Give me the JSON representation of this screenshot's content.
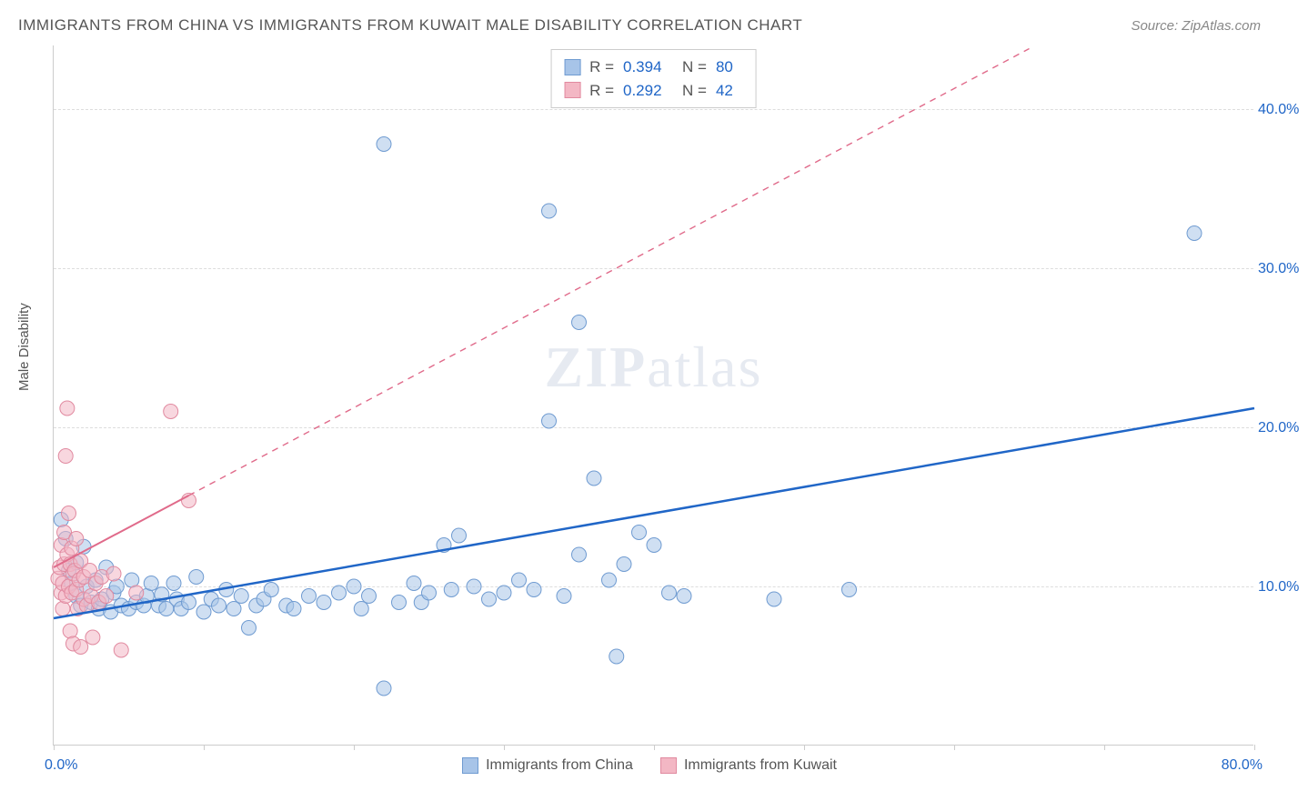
{
  "header": {
    "title": "IMMIGRANTS FROM CHINA VS IMMIGRANTS FROM KUWAIT MALE DISABILITY CORRELATION CHART",
    "source": "Source: ZipAtlas.com"
  },
  "chart": {
    "type": "scatter",
    "ylabel": "Male Disability",
    "xlim": [
      0,
      80
    ],
    "ylim": [
      0,
      44
    ],
    "xticks": [
      0,
      10,
      20,
      30,
      40,
      50,
      60,
      70,
      80
    ],
    "yticks": [
      10,
      20,
      30,
      40
    ],
    "ytick_labels": [
      "10.0%",
      "20.0%",
      "30.0%",
      "40.0%"
    ],
    "xaxis_min_label": "0.0%",
    "xaxis_max_label": "80.0%",
    "background_color": "#ffffff",
    "grid_color": "#dddddd",
    "axis_color": "#cccccc",
    "marker_radius": 8,
    "marker_opacity": 0.55,
    "watermark": "ZIPatlas",
    "series": [
      {
        "name": "Immigrants from China",
        "color_fill": "#a7c4e8",
        "color_stroke": "#6f9bd1",
        "trend_color": "#2066c7",
        "trend_width": 2.5,
        "trend_solid_until_x": 80,
        "trend": {
          "x1": 0,
          "y1": 8.0,
          "x2": 80,
          "y2": 21.2
        },
        "R": "0.394",
        "N": "80",
        "data": [
          [
            0.5,
            14.2
          ],
          [
            0.8,
            13.0
          ],
          [
            1.0,
            11.0
          ],
          [
            1.2,
            10.2
          ],
          [
            1.5,
            9.4
          ],
          [
            1.5,
            11.5
          ],
          [
            1.8,
            8.8
          ],
          [
            2.0,
            12.5
          ],
          [
            2.2,
            10.0
          ],
          [
            2.5,
            9.0
          ],
          [
            2.8,
            10.4
          ],
          [
            3.0,
            8.6
          ],
          [
            3.2,
            9.2
          ],
          [
            3.5,
            11.2
          ],
          [
            3.8,
            8.4
          ],
          [
            4.0,
            9.6
          ],
          [
            4.2,
            10.0
          ],
          [
            4.5,
            8.8
          ],
          [
            5.0,
            8.6
          ],
          [
            5.2,
            10.4
          ],
          [
            5.5,
            9.0
          ],
          [
            6.0,
            8.8
          ],
          [
            6.2,
            9.4
          ],
          [
            6.5,
            10.2
          ],
          [
            7.0,
            8.8
          ],
          [
            7.2,
            9.5
          ],
          [
            7.5,
            8.6
          ],
          [
            8.0,
            10.2
          ],
          [
            8.2,
            9.2
          ],
          [
            8.5,
            8.6
          ],
          [
            9.0,
            9.0
          ],
          [
            9.5,
            10.6
          ],
          [
            10.0,
            8.4
          ],
          [
            10.5,
            9.2
          ],
          [
            11.0,
            8.8
          ],
          [
            11.5,
            9.8
          ],
          [
            12.0,
            8.6
          ],
          [
            12.5,
            9.4
          ],
          [
            13.0,
            7.4
          ],
          [
            13.5,
            8.8
          ],
          [
            14.0,
            9.2
          ],
          [
            14.5,
            9.8
          ],
          [
            15.5,
            8.8
          ],
          [
            16.0,
            8.6
          ],
          [
            17.0,
            9.4
          ],
          [
            18.0,
            9.0
          ],
          [
            19.0,
            9.6
          ],
          [
            20.0,
            10.0
          ],
          [
            20.5,
            8.6
          ],
          [
            21.0,
            9.4
          ],
          [
            22.0,
            3.6
          ],
          [
            23.0,
            9.0
          ],
          [
            24.0,
            10.2
          ],
          [
            24.5,
            9.0
          ],
          [
            25.0,
            9.6
          ],
          [
            22.0,
            37.8
          ],
          [
            26.0,
            12.6
          ],
          [
            26.5,
            9.8
          ],
          [
            27.0,
            13.2
          ],
          [
            28.0,
            10.0
          ],
          [
            29.0,
            9.2
          ],
          [
            30.0,
            9.6
          ],
          [
            31.0,
            10.4
          ],
          [
            32.0,
            9.8
          ],
          [
            33.0,
            20.4
          ],
          [
            33.0,
            33.6
          ],
          [
            34.0,
            9.4
          ],
          [
            35.0,
            12.0
          ],
          [
            35.0,
            26.6
          ],
          [
            36.0,
            16.8
          ],
          [
            37.0,
            10.4
          ],
          [
            37.5,
            5.6
          ],
          [
            38.0,
            11.4
          ],
          [
            39.0,
            13.4
          ],
          [
            40.0,
            12.6
          ],
          [
            41.0,
            9.6
          ],
          [
            42.0,
            9.4
          ],
          [
            48.0,
            9.2
          ],
          [
            53.0,
            9.8
          ],
          [
            76.0,
            32.2
          ]
        ]
      },
      {
        "name": "Immigrants from Kuwait",
        "color_fill": "#f3b7c4",
        "color_stroke": "#e18aa0",
        "trend_color": "#e06a8a",
        "trend_width": 2,
        "trend_solid_until_x": 9,
        "trend": {
          "x1": 0,
          "y1": 11.2,
          "x2": 65,
          "y2": 43.8
        },
        "R": "0.292",
        "N": "42",
        "data": [
          [
            0.3,
            10.5
          ],
          [
            0.4,
            11.2
          ],
          [
            0.5,
            9.6
          ],
          [
            0.5,
            12.6
          ],
          [
            0.6,
            10.2
          ],
          [
            0.6,
            8.6
          ],
          [
            0.7,
            11.4
          ],
          [
            0.7,
            13.4
          ],
          [
            0.8,
            18.2
          ],
          [
            0.8,
            9.4
          ],
          [
            0.9,
            12.0
          ],
          [
            0.9,
            21.2
          ],
          [
            1.0,
            10.0
          ],
          [
            1.0,
            14.6
          ],
          [
            1.1,
            11.4
          ],
          [
            1.1,
            7.2
          ],
          [
            1.2,
            12.4
          ],
          [
            1.2,
            9.6
          ],
          [
            1.3,
            10.8
          ],
          [
            1.3,
            6.4
          ],
          [
            1.4,
            11.0
          ],
          [
            1.5,
            9.8
          ],
          [
            1.5,
            13.0
          ],
          [
            1.6,
            8.6
          ],
          [
            1.7,
            10.4
          ],
          [
            1.8,
            6.2
          ],
          [
            1.8,
            11.6
          ],
          [
            2.0,
            9.2
          ],
          [
            2.0,
            10.6
          ],
          [
            2.2,
            8.8
          ],
          [
            2.4,
            11.0
          ],
          [
            2.5,
            9.4
          ],
          [
            2.6,
            6.8
          ],
          [
            2.8,
            10.2
          ],
          [
            3.0,
            9.0
          ],
          [
            3.2,
            10.6
          ],
          [
            3.5,
            9.4
          ],
          [
            4.0,
            10.8
          ],
          [
            4.5,
            6.0
          ],
          [
            5.5,
            9.6
          ],
          [
            7.8,
            21.0
          ],
          [
            9.0,
            15.4
          ]
        ]
      }
    ]
  },
  "legend_bottom": {
    "items": [
      {
        "label": "Immigrants from China",
        "fill": "#a7c4e8",
        "stroke": "#6f9bd1"
      },
      {
        "label": "Immigrants from Kuwait",
        "fill": "#f3b7c4",
        "stroke": "#e18aa0"
      }
    ]
  },
  "colors": {
    "title_text": "#555555",
    "source_text": "#888888",
    "value_text": "#2066c7",
    "tick_text": "#2066c7"
  }
}
